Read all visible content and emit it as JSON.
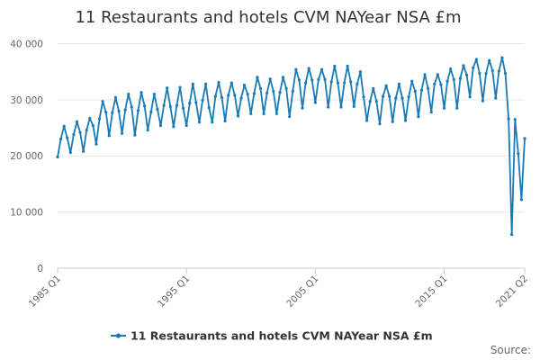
{
  "chart_data": {
    "type": "line",
    "title": "11 Restaurants and hotels CVM NAYear NSA £m",
    "xlabel": "",
    "ylabel": "",
    "source_label": "Source:",
    "x_range": [
      "1985 Q1",
      "2021 Q2"
    ],
    "xticks": [
      "1985 Q1",
      "1995 Q1",
      "2005 Q1",
      "2015 Q1",
      "2021 Q2"
    ],
    "yticks": [
      "0",
      "10 000",
      "20 000",
      "30 000",
      "40 000"
    ],
    "ylim": [
      0,
      42000
    ],
    "grid": "horizontal",
    "legend_position": "bottom",
    "colors": {
      "series": "#1a7ab5",
      "grid": "#e6e6e6",
      "axis": "#cccccc"
    },
    "series": [
      {
        "name": "11 Restaurants and hotels CVM NAYear NSA £m",
        "start": "1985 Q1",
        "frequency": "quarterly",
        "values": [
          19800,
          23000,
          25300,
          23200,
          20600,
          23800,
          26100,
          24200,
          20800,
          24600,
          26700,
          25400,
          22100,
          26600,
          29700,
          27800,
          23600,
          27700,
          30400,
          28000,
          24000,
          28200,
          31000,
          28700,
          23700,
          28100,
          31300,
          28900,
          24600,
          27800,
          31000,
          28300,
          25400,
          29000,
          32100,
          28800,
          25200,
          29000,
          32200,
          28500,
          25400,
          29400,
          32800,
          29500,
          26000,
          29900,
          32800,
          28600,
          26000,
          30600,
          33100,
          30400,
          26200,
          30800,
          33000,
          30800,
          27100,
          30300,
          32600,
          31000,
          27500,
          31100,
          34000,
          32000,
          27500,
          31200,
          33700,
          31500,
          27500,
          31300,
          34000,
          32000,
          27000,
          31500,
          35400,
          33500,
          28500,
          33000,
          35600,
          33500,
          29500,
          33600,
          35400,
          33600,
          28700,
          33200,
          36000,
          33000,
          28700,
          33000,
          36000,
          33200,
          28800,
          32800,
          35000,
          30500,
          26300,
          29700,
          32000,
          29700,
          25700,
          30600,
          32500,
          30600,
          26100,
          30300,
          32800,
          30300,
          26300,
          30500,
          33300,
          31500,
          27000,
          31700,
          34500,
          32000,
          27800,
          32800,
          34500,
          32700,
          28500,
          33300,
          35500,
          33600,
          28500,
          33800,
          36100,
          34400,
          30500,
          35700,
          37200,
          34700,
          29800,
          34700,
          37000,
          35200,
          30300,
          35100,
          37500,
          34700,
          26600,
          6000,
          26500,
          20400,
          12200,
          23100
        ]
      }
    ]
  }
}
